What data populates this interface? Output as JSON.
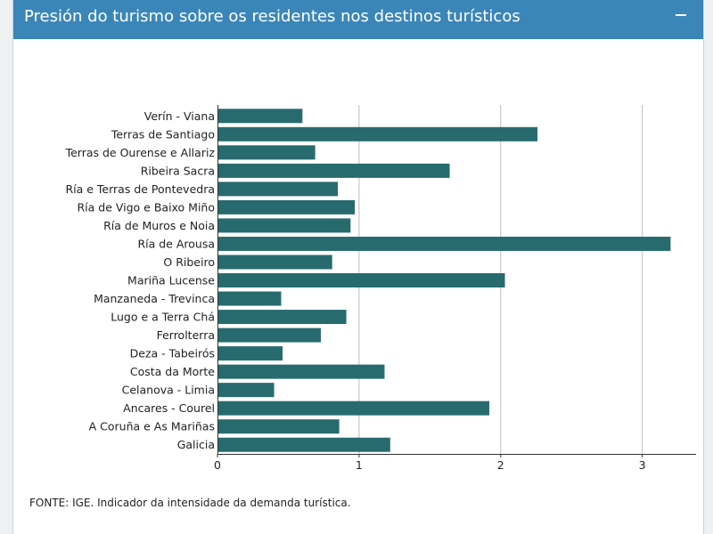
{
  "panel": {
    "title": "Presión do turismo sobre os residentes nos destinos turísticos",
    "collapse_symbol": "−",
    "source_note": "FONTE: IGE. Indicador da intensidade da demanda turística."
  },
  "colors": {
    "header": "#3b86b9",
    "bar": "#276b6f",
    "grid": "#bdbdbd",
    "axis": "#333333"
  },
  "chart_data": {
    "type": "bar",
    "orientation": "horizontal",
    "title": "Presión do turismo sobre os residentes nos destinos turísticos",
    "xlabel": "",
    "ylabel": "",
    "xlim": [
      0,
      3.38
    ],
    "xticks": [
      0,
      1,
      2,
      3
    ],
    "grid": true,
    "categories": [
      "Verín - Viana",
      "Terras de Santiago",
      "Terras de Ourense e Allariz",
      "Ribeira Sacra",
      "Ría e Terras de Pontevedra",
      "Ría de Vigo e Baixo Miño",
      "Ría de Muros e Noia",
      "Ría de Arousa",
      "O Ribeiro",
      "Mariña Lucense",
      "Manzaneda - Trevinca",
      "Lugo e a Terra Chá",
      "Ferrolterra",
      "Deza - Tabeirós",
      "Costa da Morte",
      "Celanova - Limia",
      "Ancares - Courel",
      "A Coruña e As Mariñas",
      "Galicia"
    ],
    "values": [
      0.6,
      2.26,
      0.69,
      1.64,
      0.85,
      0.97,
      0.94,
      3.2,
      0.81,
      2.03,
      0.45,
      0.91,
      0.73,
      0.46,
      1.18,
      0.4,
      1.92,
      0.86,
      1.22
    ]
  }
}
